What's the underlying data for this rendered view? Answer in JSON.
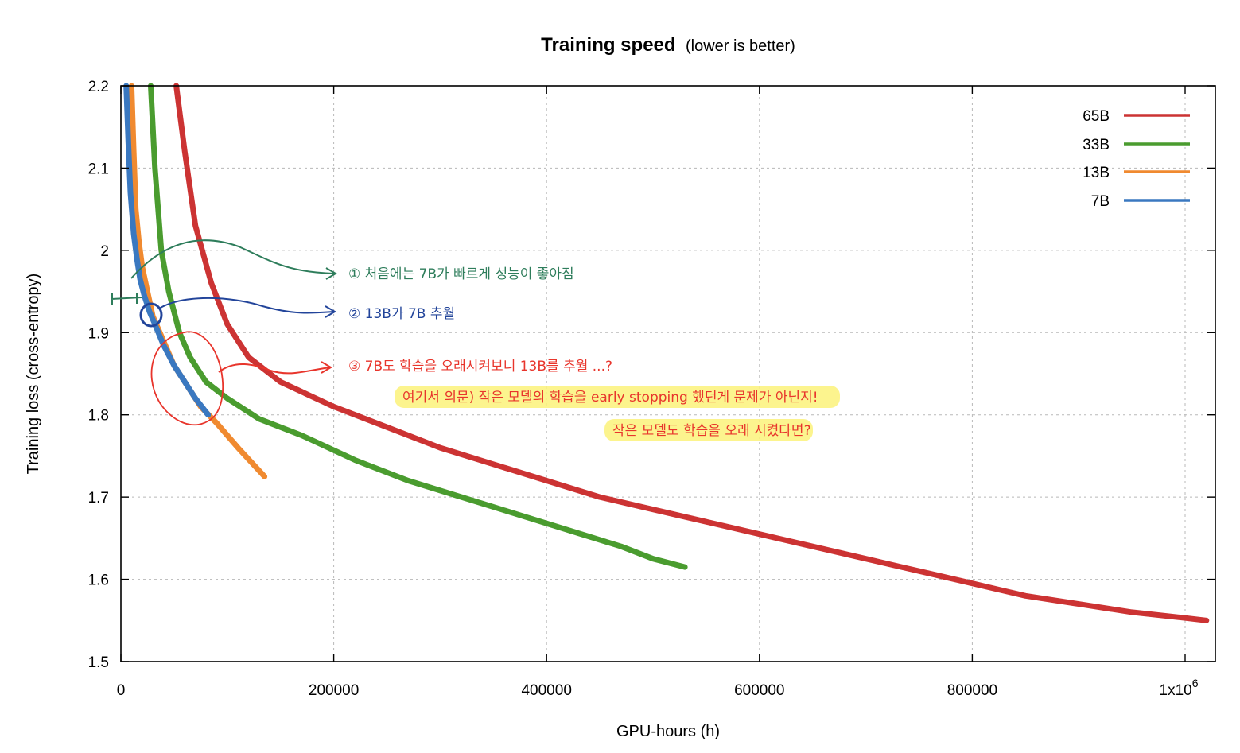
{
  "chart_data": {
    "type": "line",
    "title": "Training speed",
    "subtitle": "(lower is better)",
    "xlabel": "GPU-hours (h)",
    "ylabel": "Training loss (cross-entropy)",
    "xlim": [
      0,
      1030000
    ],
    "ylim": [
      1.5,
      2.2
    ],
    "x_ticks": [
      "0",
      "200000",
      "400000",
      "600000",
      "800000",
      "1x10"
    ],
    "x_tick_exponent": "6",
    "y_ticks": [
      "1.5",
      "1.6",
      "1.7",
      "1.8",
      "1.9",
      "2",
      "2.1",
      "2.2"
    ],
    "grid": true,
    "legend_position": "top-right",
    "colors": {
      "65B": "#cc3333",
      "33B": "#4a9c2f",
      "13B": "#f08a30",
      "7B": "#3a78c0"
    },
    "series": [
      {
        "name": "65B",
        "x": [
          52000,
          60000,
          70000,
          85000,
          100000,
          120000,
          150000,
          200000,
          250000,
          300000,
          350000,
          400000,
          450000,
          500000,
          550000,
          600000,
          650000,
          700000,
          750000,
          800000,
          850000,
          900000,
          950000,
          1000000,
          1020000
        ],
        "y": [
          2.2,
          2.12,
          2.03,
          1.96,
          1.91,
          1.87,
          1.84,
          1.81,
          1.785,
          1.76,
          1.74,
          1.72,
          1.7,
          1.685,
          1.67,
          1.655,
          1.64,
          1.625,
          1.61,
          1.595,
          1.58,
          1.57,
          1.56,
          1.553,
          1.55
        ]
      },
      {
        "name": "33B",
        "x": [
          28000,
          32000,
          38000,
          45000,
          55000,
          65000,
          80000,
          100000,
          130000,
          170000,
          220000,
          270000,
          320000,
          370000,
          420000,
          470000,
          500000,
          530000
        ],
        "y": [
          2.2,
          2.1,
          2.0,
          1.95,
          1.9,
          1.87,
          1.84,
          1.82,
          1.795,
          1.775,
          1.745,
          1.72,
          1.7,
          1.68,
          1.66,
          1.64,
          1.625,
          1.615
        ]
      },
      {
        "name": "13B",
        "x": [
          10000,
          12000,
          14000,
          17000,
          20000,
          25000,
          30000,
          40000,
          50000,
          60000,
          75000,
          90000,
          110000,
          135000
        ],
        "y": [
          2.2,
          2.12,
          2.05,
          2.01,
          1.98,
          1.95,
          1.92,
          1.89,
          1.86,
          1.84,
          1.81,
          1.79,
          1.76,
          1.725
        ]
      },
      {
        "name": "7B",
        "x": [
          5000,
          7000,
          9000,
          12000,
          15000,
          18000,
          22000,
          27000,
          32000,
          40000,
          50000,
          60000,
          70000,
          82000
        ],
        "y": [
          2.2,
          2.13,
          2.07,
          2.02,
          1.99,
          1.965,
          1.945,
          1.925,
          1.91,
          1.885,
          1.86,
          1.84,
          1.82,
          1.8
        ]
      }
    ],
    "annotations": [
      "① 처음에는 7B가 빠르게 성능이 좋아짐",
      "② 13B가 7B 추월",
      "③ 7B도 학습을 오래시켜보니 13B를 추월 ...?",
      "여기서 의문) 작은 모델의 학습을 early stopping 했던게 문제가 아닌지!",
      "작은 모델도 학습을 오래 시켰다면?"
    ]
  }
}
